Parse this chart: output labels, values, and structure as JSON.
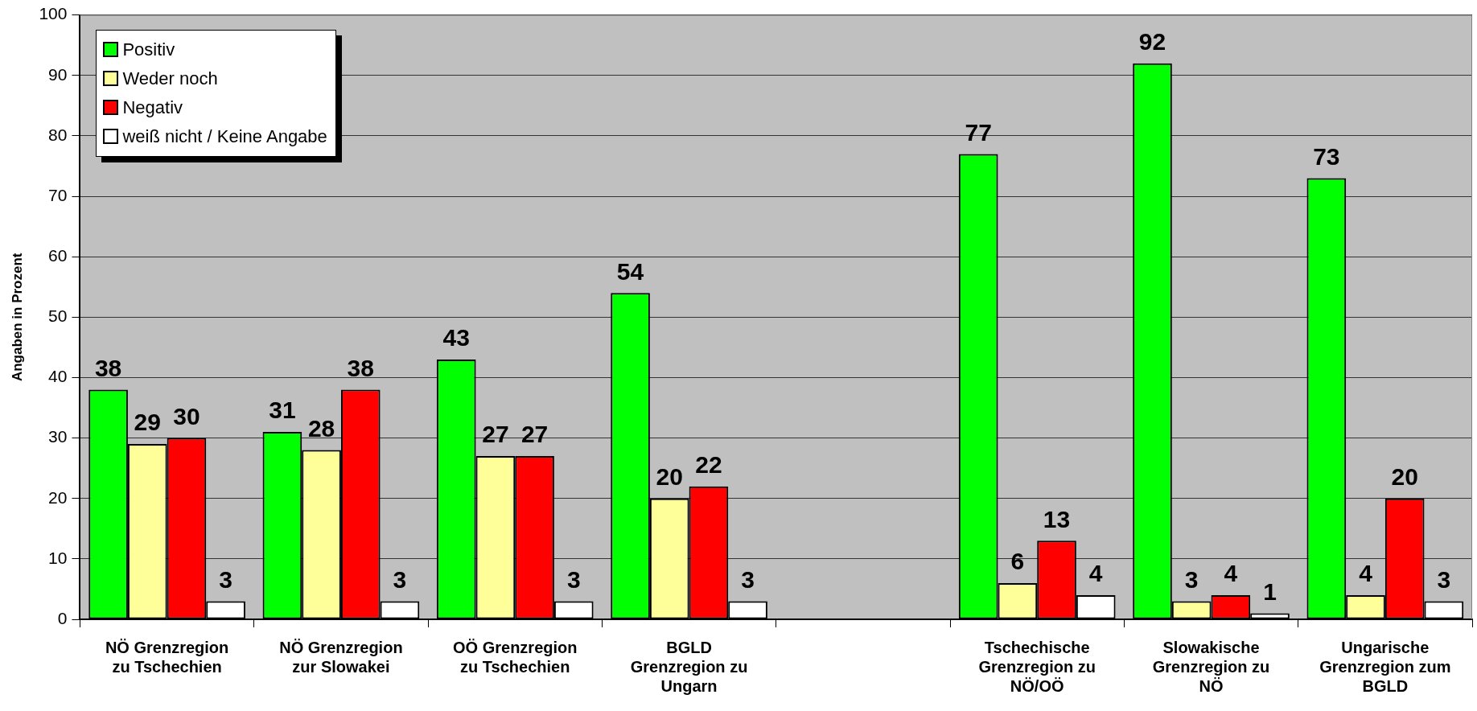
{
  "chart_data": {
    "type": "bar",
    "ylabel": "Angaben in Prozent",
    "categories": [
      "NÖ Grenzregion zu Tschechien",
      "NÖ Grenzregion zur Slowakei",
      "OÖ Grenzregion zu Tschechien",
      "BGLD Grenzregion zu Ungarn",
      null,
      "Tschechische Grenzregion zu NÖ/OÖ",
      "Slowakische Grenzregion zu NÖ",
      "Ungarische Grenzregion zum BGLD"
    ],
    "series": [
      {
        "name": "Positiv",
        "color": "#00ff00",
        "values": [
          38,
          31,
          43,
          54,
          null,
          77,
          92,
          73
        ]
      },
      {
        "name": "Weder noch",
        "color": "#ffff99",
        "values": [
          29,
          28,
          27,
          20,
          null,
          6,
          3,
          4
        ]
      },
      {
        "name": "Negativ",
        "color": "#ff0000",
        "values": [
          30,
          38,
          27,
          22,
          null,
          13,
          4,
          20
        ]
      },
      {
        "name": "weiß nicht / Keine Angabe",
        "color": "#ffffff",
        "values": [
          3,
          3,
          3,
          3,
          null,
          4,
          1,
          3
        ]
      }
    ],
    "ylim": [
      0,
      100
    ],
    "yticks": [
      0,
      10,
      20,
      30,
      40,
      50,
      60,
      70,
      80,
      90,
      100
    ],
    "grid": "y",
    "legend": "top left",
    "data_labels": true
  }
}
